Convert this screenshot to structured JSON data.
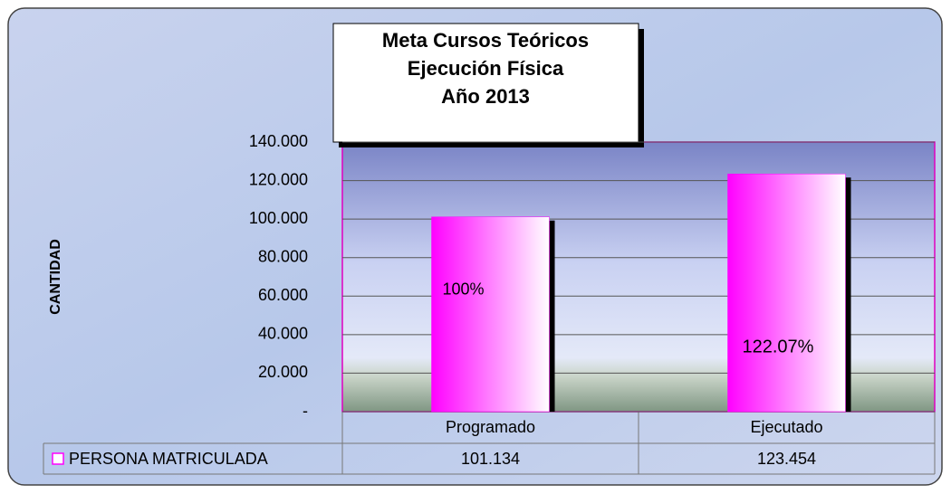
{
  "chart_data": {
    "type": "bar",
    "title": [
      "Meta   Cursos Teóricos",
      "Ejecución  Física",
      "Año  2013"
    ],
    "y_label": "CANTIDAD",
    "categories": [
      "Programado",
      "Ejecutado"
    ],
    "series": [
      {
        "name": "PERSONA MATRICULADA",
        "color": "#ff00ff",
        "values": [
          101134,
          123454
        ],
        "value_labels": [
          "101.134",
          "123.454"
        ]
      }
    ],
    "annotations": [
      "100%",
      "122.07%"
    ],
    "ylim": [
      0,
      140000
    ],
    "yticks": [
      {
        "value": 0,
        "label": "-"
      },
      {
        "value": 20000,
        "label": "20.000"
      },
      {
        "value": 40000,
        "label": "40.000"
      },
      {
        "value": 60000,
        "label": "60.000"
      },
      {
        "value": 80000,
        "label": "80.000"
      },
      {
        "value": 100000,
        "label": "100.000"
      },
      {
        "value": 120000,
        "label": "120.000"
      },
      {
        "value": 140000,
        "label": "140.000"
      }
    ],
    "grid": true
  }
}
